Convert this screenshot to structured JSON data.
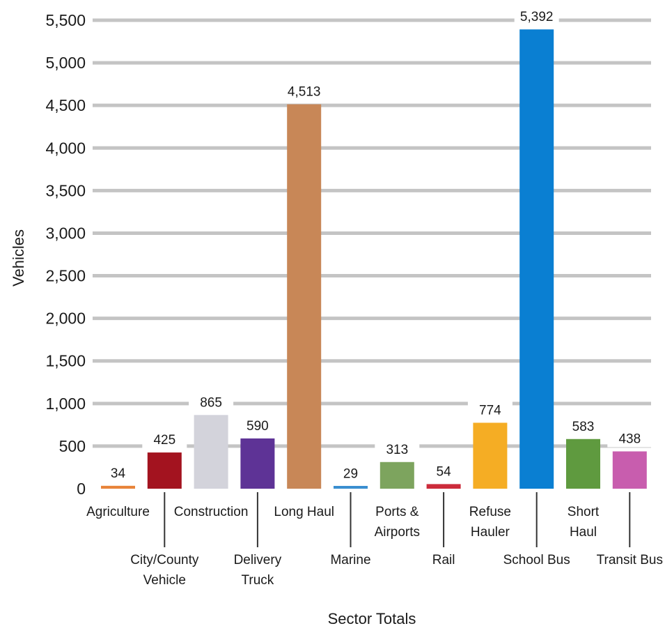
{
  "chart_data": {
    "type": "bar",
    "title": "",
    "xlabel": "Sector Totals",
    "ylabel": "Vehicles",
    "ylim": [
      0,
      5500
    ],
    "yticks": [
      "0",
      "500",
      "1,000",
      "1,500",
      "2,000",
      "2,500",
      "3,000",
      "3,500",
      "4,000",
      "4,500",
      "5,000",
      "5,500"
    ],
    "grid": true,
    "legend": "none",
    "categories": [
      {
        "label": [
          "Agriculture"
        ],
        "value": 34,
        "display": "34",
        "color": "#E8843A",
        "label_row": "top"
      },
      {
        "label": [
          "City/County",
          "Vehicle"
        ],
        "value": 425,
        "display": "425",
        "color": "#A3131F",
        "label_row": "bottom"
      },
      {
        "label": [
          "Construction"
        ],
        "value": 865,
        "display": "865",
        "color": "#D3D3DB",
        "label_row": "top"
      },
      {
        "label": [
          "Delivery",
          "Truck"
        ],
        "value": 590,
        "display": "590",
        "color": "#5E3396",
        "label_row": "bottom"
      },
      {
        "label": [
          "Long Haul"
        ],
        "value": 4513,
        "display": "4,513",
        "color": "#C88757",
        "label_row": "top"
      },
      {
        "label": [
          "Marine"
        ],
        "value": 29,
        "display": "29",
        "color": "#3A8FD0",
        "label_row": "bottom"
      },
      {
        "label": [
          "Ports &",
          "Airports"
        ],
        "value": 313,
        "display": "313",
        "color": "#7DA45E",
        "label_row": "top"
      },
      {
        "label": [
          "Rail"
        ],
        "value": 54,
        "display": "54",
        "color": "#CC2B3B",
        "label_row": "bottom"
      },
      {
        "label": [
          "Refuse",
          "Hauler"
        ],
        "value": 774,
        "display": "774",
        "color": "#F5AD24",
        "label_row": "top"
      },
      {
        "label": [
          "School Bus"
        ],
        "value": 5392,
        "display": "5,392",
        "color": "#0A7FD2",
        "label_row": "bottom"
      },
      {
        "label": [
          "Short",
          "Haul"
        ],
        "value": 583,
        "display": "583",
        "color": "#5F9A3F",
        "label_row": "top"
      },
      {
        "label": [
          "Transit Bus"
        ],
        "value": 438,
        "display": "438",
        "color": "#C85DAE",
        "label_row": "bottom"
      }
    ]
  }
}
